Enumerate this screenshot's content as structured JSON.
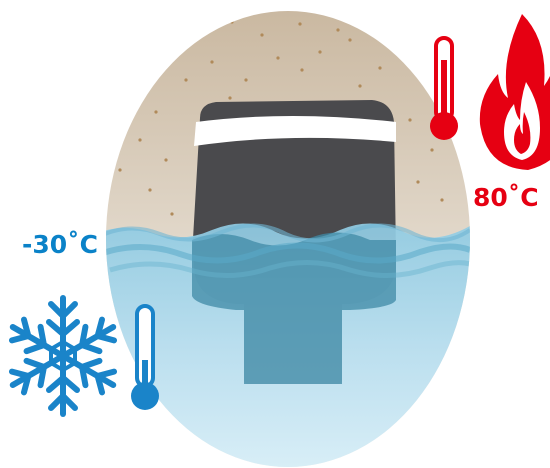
{
  "labels": {
    "hot_temperature": "80˚C",
    "cold_temperature": "-30˚C"
  },
  "colors": {
    "hot": "#e60012",
    "cold": "#0a82c8",
    "sand": "#dcd0c0",
    "water_light": "#bfe4f2",
    "water_mid": "#7fc3dc",
    "water_dark": "#3f94b6",
    "device": "#4d4d4f",
    "device_band": "#ffffff",
    "snowflake": "#1a84c9"
  },
  "icons": {
    "hot_thermometer": "thermometer-icon",
    "flame": "flame-icon",
    "cold_thermometer": "thermometer-icon",
    "snowflake": "snowflake-icon",
    "device": "sensor-device-icon"
  }
}
